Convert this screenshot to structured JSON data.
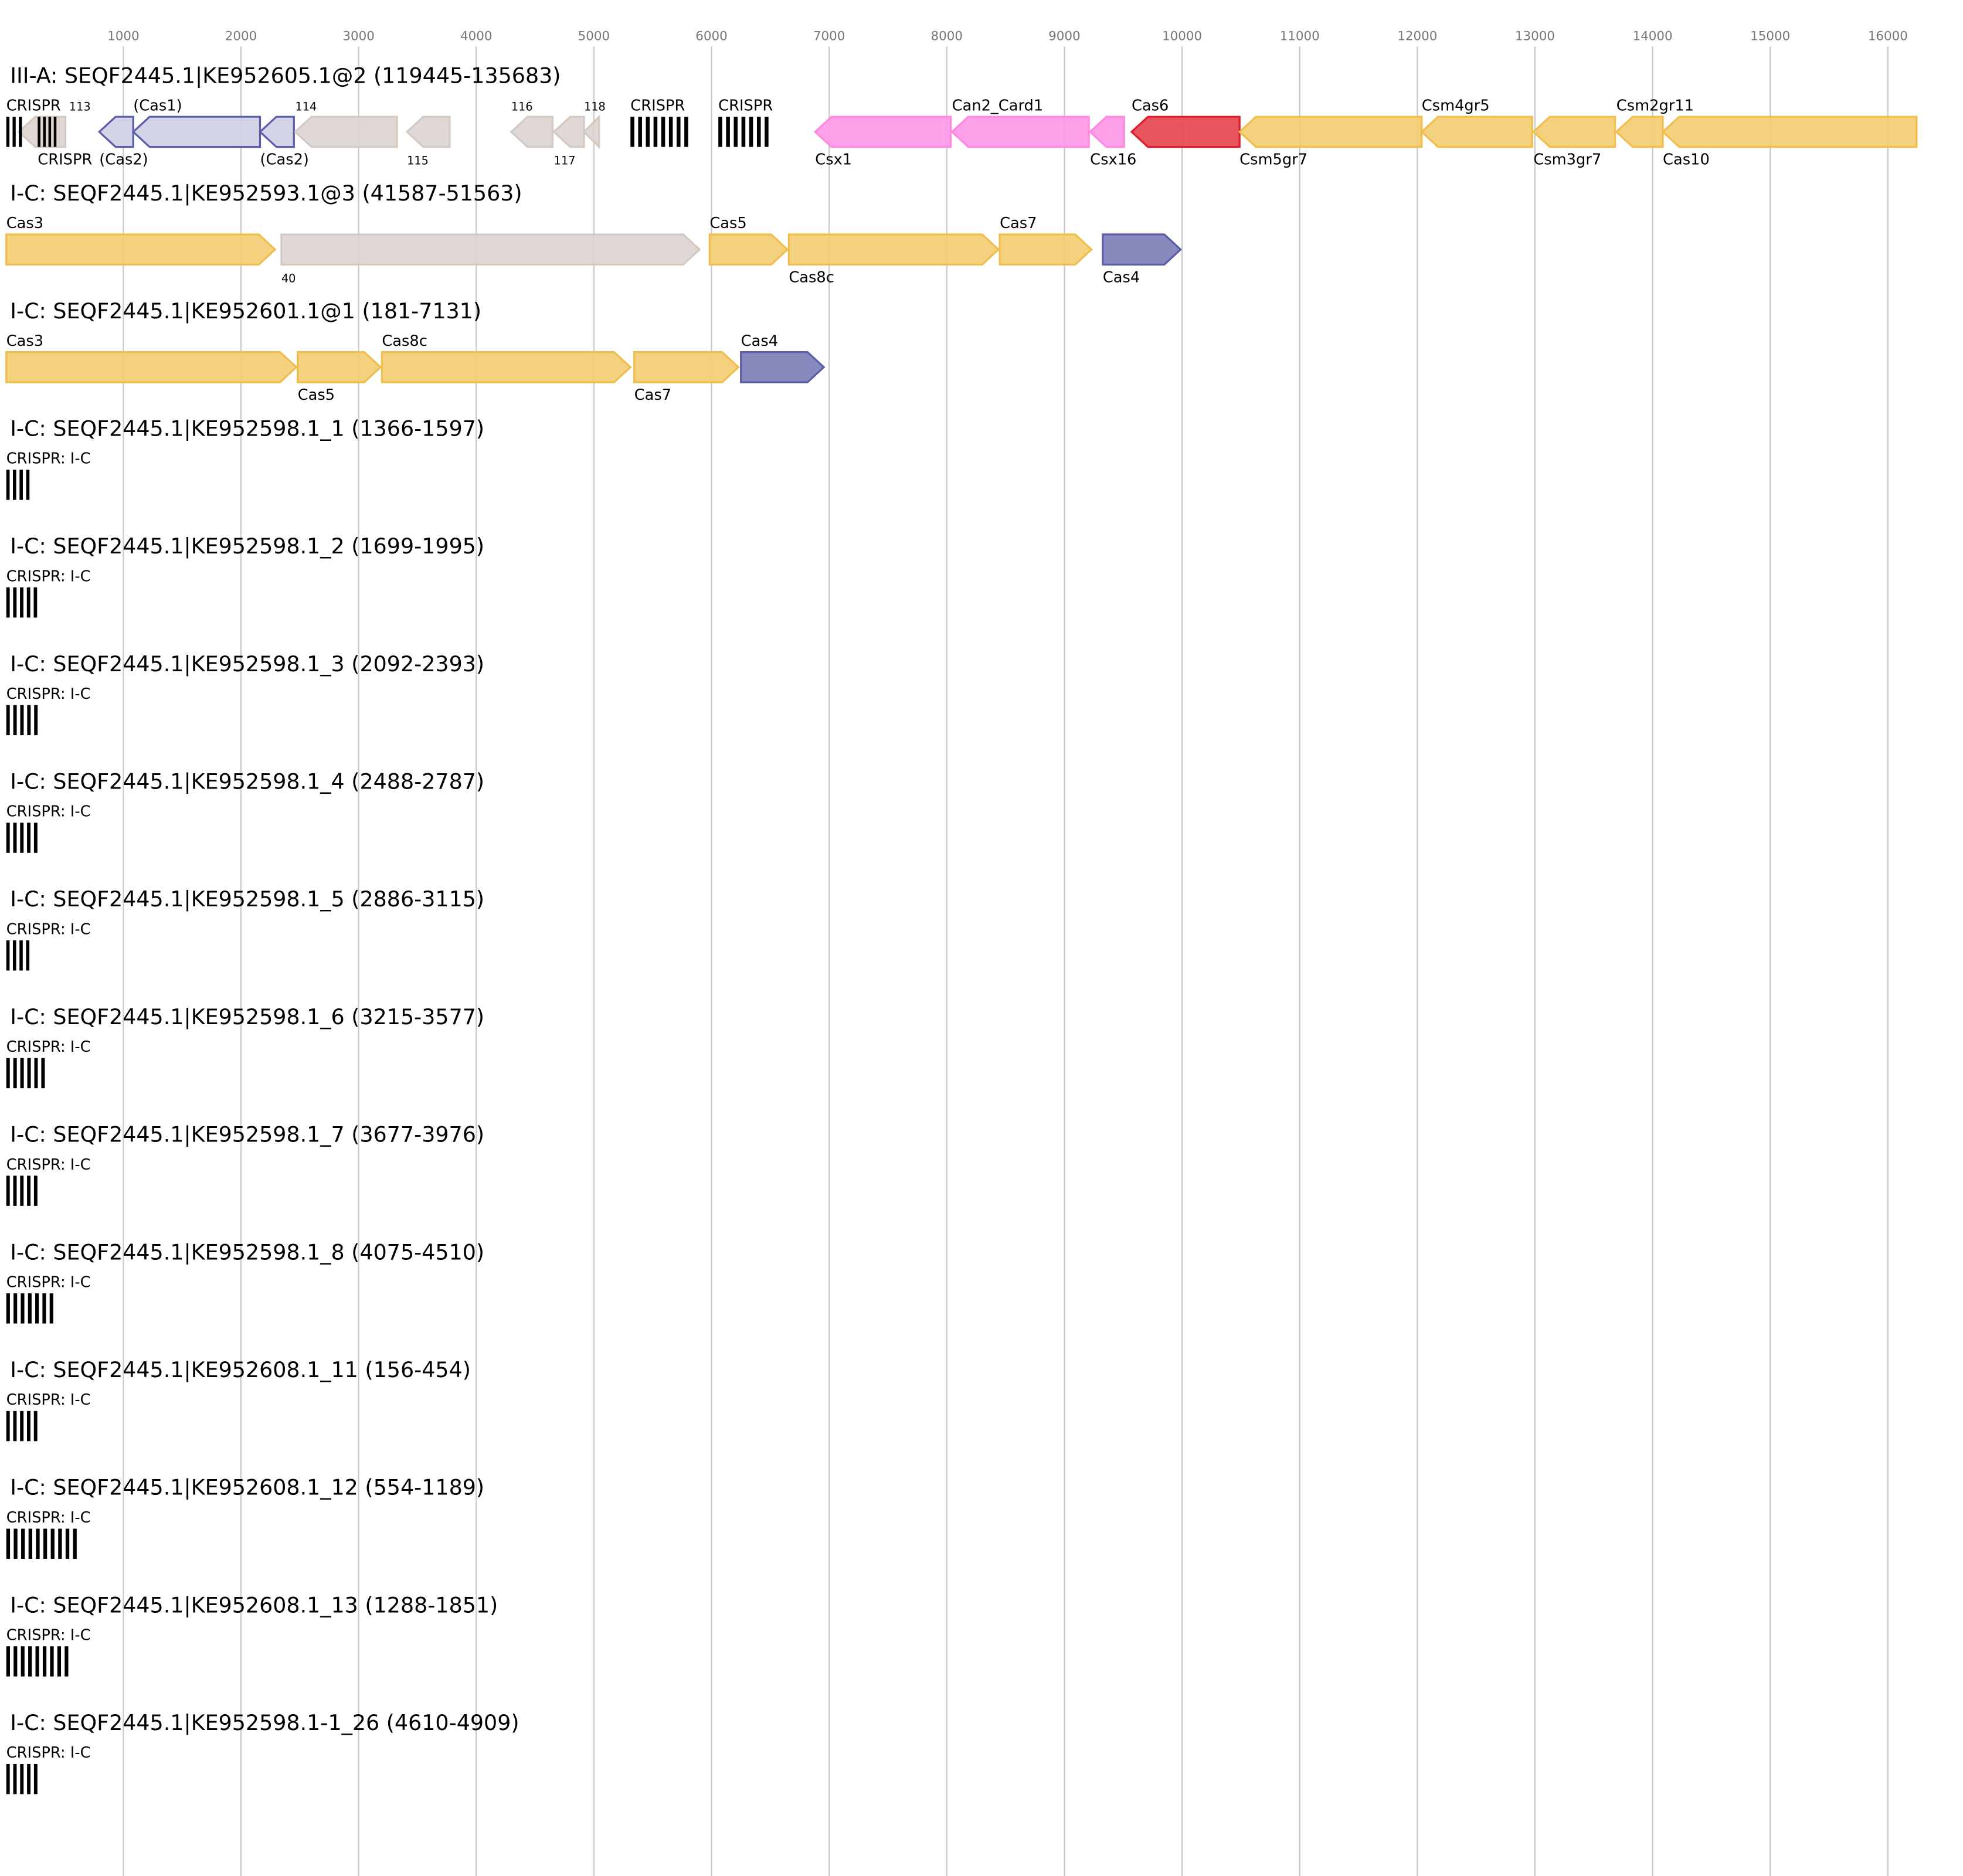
{
  "axis": {
    "ticks": [
      1000,
      2000,
      3000,
      4000,
      5000,
      6000,
      7000,
      8000,
      9000,
      10000,
      11000,
      12000,
      13000,
      14000,
      15000,
      16000
    ]
  },
  "colors": {
    "yellow": {
      "fill": "#f2cd73",
      "stroke": "#f0be4a"
    },
    "gray": {
      "fill": "#dcd5d0",
      "stroke": "#d3c9c0"
    },
    "lavender": {
      "fill": "#cfd0e6",
      "stroke": "#5a5ea8"
    },
    "blue": {
      "fill": "#7e80b8",
      "stroke": "#5a5ea8"
    },
    "pink": {
      "fill": "#ff99e8",
      "stroke": "#ff88e0"
    },
    "red": {
      "fill": "#e5464f",
      "stroke": "#e01b2b"
    }
  },
  "loci": [
    {
      "title": "III-A: SEQF2445.1|KE952605.1@2 (119445-135683)",
      "features": [
        {
          "label": "113",
          "start": 112,
          "end": 507,
          "strand": "-",
          "color": "gray",
          "pos": "above",
          "small": true
        },
        {
          "label": "CRISPR",
          "start": 5,
          "end": 165,
          "type": "crispr",
          "repeats": 3,
          "pos": "above"
        },
        {
          "label": "CRISPR",
          "start": 272,
          "end": 454,
          "type": "crispr",
          "repeats": 4,
          "pos": "above"
        },
        {
          "label": "(Cas2)",
          "start": 795,
          "end": 1084,
          "strand": "-",
          "color": "lavender",
          "pos": "below"
        },
        {
          "label": "(Cas1)",
          "start": 1084,
          "end": 2162,
          "strand": "-",
          "color": "lavender",
          "pos": "above"
        },
        {
          "label": "(Cas2)",
          "start": 2162,
          "end": 2450,
          "strand": "-",
          "color": "lavender",
          "pos": "below"
        },
        {
          "label": "114",
          "start": 2461,
          "end": 3326,
          "strand": "-",
          "color": "gray",
          "pos": "above",
          "small": true
        },
        {
          "label": "115",
          "start": 3411,
          "end": 3774,
          "strand": "-",
          "color": "gray",
          "pos": "below",
          "small": true
        },
        {
          "label": "116",
          "start": 4297,
          "end": 4649,
          "strand": "-",
          "color": "gray",
          "pos": "above",
          "small": true
        },
        {
          "label": "117",
          "start": 4660,
          "end": 4916,
          "strand": "-",
          "color": "gray",
          "pos": "below",
          "small": true
        },
        {
          "label": "118",
          "start": 4916,
          "end": 5044,
          "strand": "-",
          "color": "gray",
          "pos": "above",
          "small": true
        },
        {
          "label": "CRISPR",
          "start": 5311,
          "end": 5834,
          "type": "crispr",
          "repeats": 8,
          "pos": "above"
        },
        {
          "label": "CRISPR",
          "start": 6058,
          "end": 6517,
          "type": "crispr",
          "repeats": 7,
          "pos": "above"
        },
        {
          "label": "Csx1",
          "start": 6881,
          "end": 8034,
          "strand": "-",
          "color": "pink",
          "pos": "below"
        },
        {
          "label": "Can2_Card1",
          "start": 8044,
          "end": 9208,
          "strand": "-",
          "color": "pink",
          "pos": "above"
        },
        {
          "label": "Csx16",
          "start": 9218,
          "end": 9507,
          "strand": "-",
          "color": "pink",
          "pos": "below"
        },
        {
          "label": "Cas6",
          "start": 9571,
          "end": 10489,
          "strand": "-",
          "color": "red",
          "pos": "above"
        },
        {
          "label": "Csm5gr7",
          "start": 10489,
          "end": 12037,
          "strand": "-",
          "color": "yellow",
          "pos": "below"
        },
        {
          "label": "Csm4gr5",
          "start": 12037,
          "end": 12976,
          "strand": "-",
          "color": "yellow",
          "pos": "above"
        },
        {
          "label": "Csm3gr7",
          "start": 12987,
          "end": 13681,
          "strand": "-",
          "color": "yellow",
          "pos": "below"
        },
        {
          "label": "Csm2gr11",
          "start": 13692,
          "end": 14087,
          "strand": "-",
          "color": "yellow",
          "pos": "above"
        },
        {
          "label": "Cas10",
          "start": 14087,
          "end": 16244,
          "strand": "-",
          "color": "yellow",
          "pos": "below"
        }
      ]
    },
    {
      "title": "I-C: SEQF2445.1|KE952593.1@3 (41587-51563)",
      "features": [
        {
          "label": "Cas3",
          "start": 5,
          "end": 2290,
          "strand": "+",
          "color": "yellow",
          "pos": "above"
        },
        {
          "label": "40",
          "start": 2343,
          "end": 5898,
          "strand": "+",
          "color": "gray",
          "pos": "below",
          "small": true
        },
        {
          "label": "Cas5",
          "start": 5984,
          "end": 6646,
          "strand": "+",
          "color": "yellow",
          "pos": "above"
        },
        {
          "label": "Cas8c",
          "start": 6657,
          "end": 8440,
          "strand": "+",
          "color": "yellow",
          "pos": "below"
        },
        {
          "label": "Cas7",
          "start": 8450,
          "end": 9230,
          "strand": "+",
          "color": "yellow",
          "pos": "above"
        },
        {
          "label": "Cas4",
          "start": 9326,
          "end": 9988,
          "strand": "+",
          "color": "blue",
          "pos": "below"
        }
      ]
    },
    {
      "title": "I-C: SEQF2445.1|KE952601.1@1 (181-7131)",
      "features": [
        {
          "label": "Cas3",
          "start": 5,
          "end": 2471,
          "strand": "+",
          "color": "yellow",
          "pos": "above"
        },
        {
          "label": "Cas5",
          "start": 2482,
          "end": 3187,
          "strand": "+",
          "color": "yellow",
          "pos": "below"
        },
        {
          "label": "Cas8c",
          "start": 3198,
          "end": 5311,
          "strand": "+",
          "color": "yellow",
          "pos": "above"
        },
        {
          "label": "Cas7",
          "start": 5343,
          "end": 6229,
          "strand": "+",
          "color": "yellow",
          "pos": "below"
        },
        {
          "label": "Cas4",
          "start": 6250,
          "end": 6955,
          "strand": "+",
          "color": "blue",
          "pos": "above"
        }
      ]
    },
    {
      "title": "I-C: SEQF2445.1|KE952598.1_1 (1366-1597)",
      "features": [
        {
          "label": "CRISPR: I-C",
          "start": 5,
          "end": 230,
          "type": "crispr",
          "repeats": 4,
          "pos": "above"
        }
      ]
    },
    {
      "title": "I-C: SEQF2445.1|KE952598.1_2 (1699-1995)",
      "features": [
        {
          "label": "CRISPR: I-C",
          "start": 5,
          "end": 296,
          "type": "crispr",
          "repeats": 5,
          "pos": "above"
        }
      ]
    },
    {
      "title": "I-C: SEQF2445.1|KE952598.1_3 (2092-2393)",
      "features": [
        {
          "label": "CRISPR: I-C",
          "start": 5,
          "end": 301,
          "type": "crispr",
          "repeats": 5,
          "pos": "above"
        }
      ]
    },
    {
      "title": "I-C: SEQF2445.1|KE952598.1_4 (2488-2787)",
      "features": [
        {
          "label": "CRISPR: I-C",
          "start": 5,
          "end": 299,
          "type": "crispr",
          "repeats": 5,
          "pos": "above"
        }
      ]
    },
    {
      "title": "I-C: SEQF2445.1|KE952598.1_5 (2886-3115)",
      "features": [
        {
          "label": "CRISPR: I-C",
          "start": 5,
          "end": 229,
          "type": "crispr",
          "repeats": 4,
          "pos": "above"
        }
      ]
    },
    {
      "title": "I-C: SEQF2445.1|KE952598.1_6 (3215-3577)",
      "features": [
        {
          "label": "CRISPR: I-C",
          "start": 5,
          "end": 362,
          "type": "crispr",
          "repeats": 6,
          "pos": "above"
        }
      ]
    },
    {
      "title": "I-C: SEQF2445.1|KE952598.1_7 (3677-3976)",
      "features": [
        {
          "label": "CRISPR: I-C",
          "start": 5,
          "end": 299,
          "type": "crispr",
          "repeats": 5,
          "pos": "above"
        }
      ]
    },
    {
      "title": "I-C: SEQF2445.1|KE952598.1_8 (4075-4510)",
      "features": [
        {
          "label": "CRISPR: I-C",
          "start": 5,
          "end": 435,
          "type": "crispr",
          "repeats": 7,
          "pos": "above"
        }
      ]
    },
    {
      "title": "I-C: SEQF2445.1|KE952608.1_11 (156-454)",
      "features": [
        {
          "label": "CRISPR: I-C",
          "start": 5,
          "end": 298,
          "type": "crispr",
          "repeats": 5,
          "pos": "above"
        }
      ]
    },
    {
      "title": "I-C: SEQF2445.1|KE952608.1_12 (554-1189)",
      "features": [
        {
          "label": "CRISPR: I-C",
          "start": 5,
          "end": 635,
          "type": "crispr",
          "repeats": 10,
          "pos": "above"
        }
      ]
    },
    {
      "title": "I-C: SEQF2445.1|KE952608.1_13 (1288-1851)",
      "features": [
        {
          "label": "CRISPR: I-C",
          "start": 5,
          "end": 563,
          "type": "crispr",
          "repeats": 9,
          "pos": "above"
        }
      ]
    },
    {
      "title": "I-C: SEQF2445.1|KE952598.1-1_26 (4610-4909)",
      "features": [
        {
          "label": "CRISPR: I-C",
          "start": 5,
          "end": 299,
          "type": "crispr",
          "repeats": 5,
          "pos": "above"
        }
      ]
    }
  ]
}
